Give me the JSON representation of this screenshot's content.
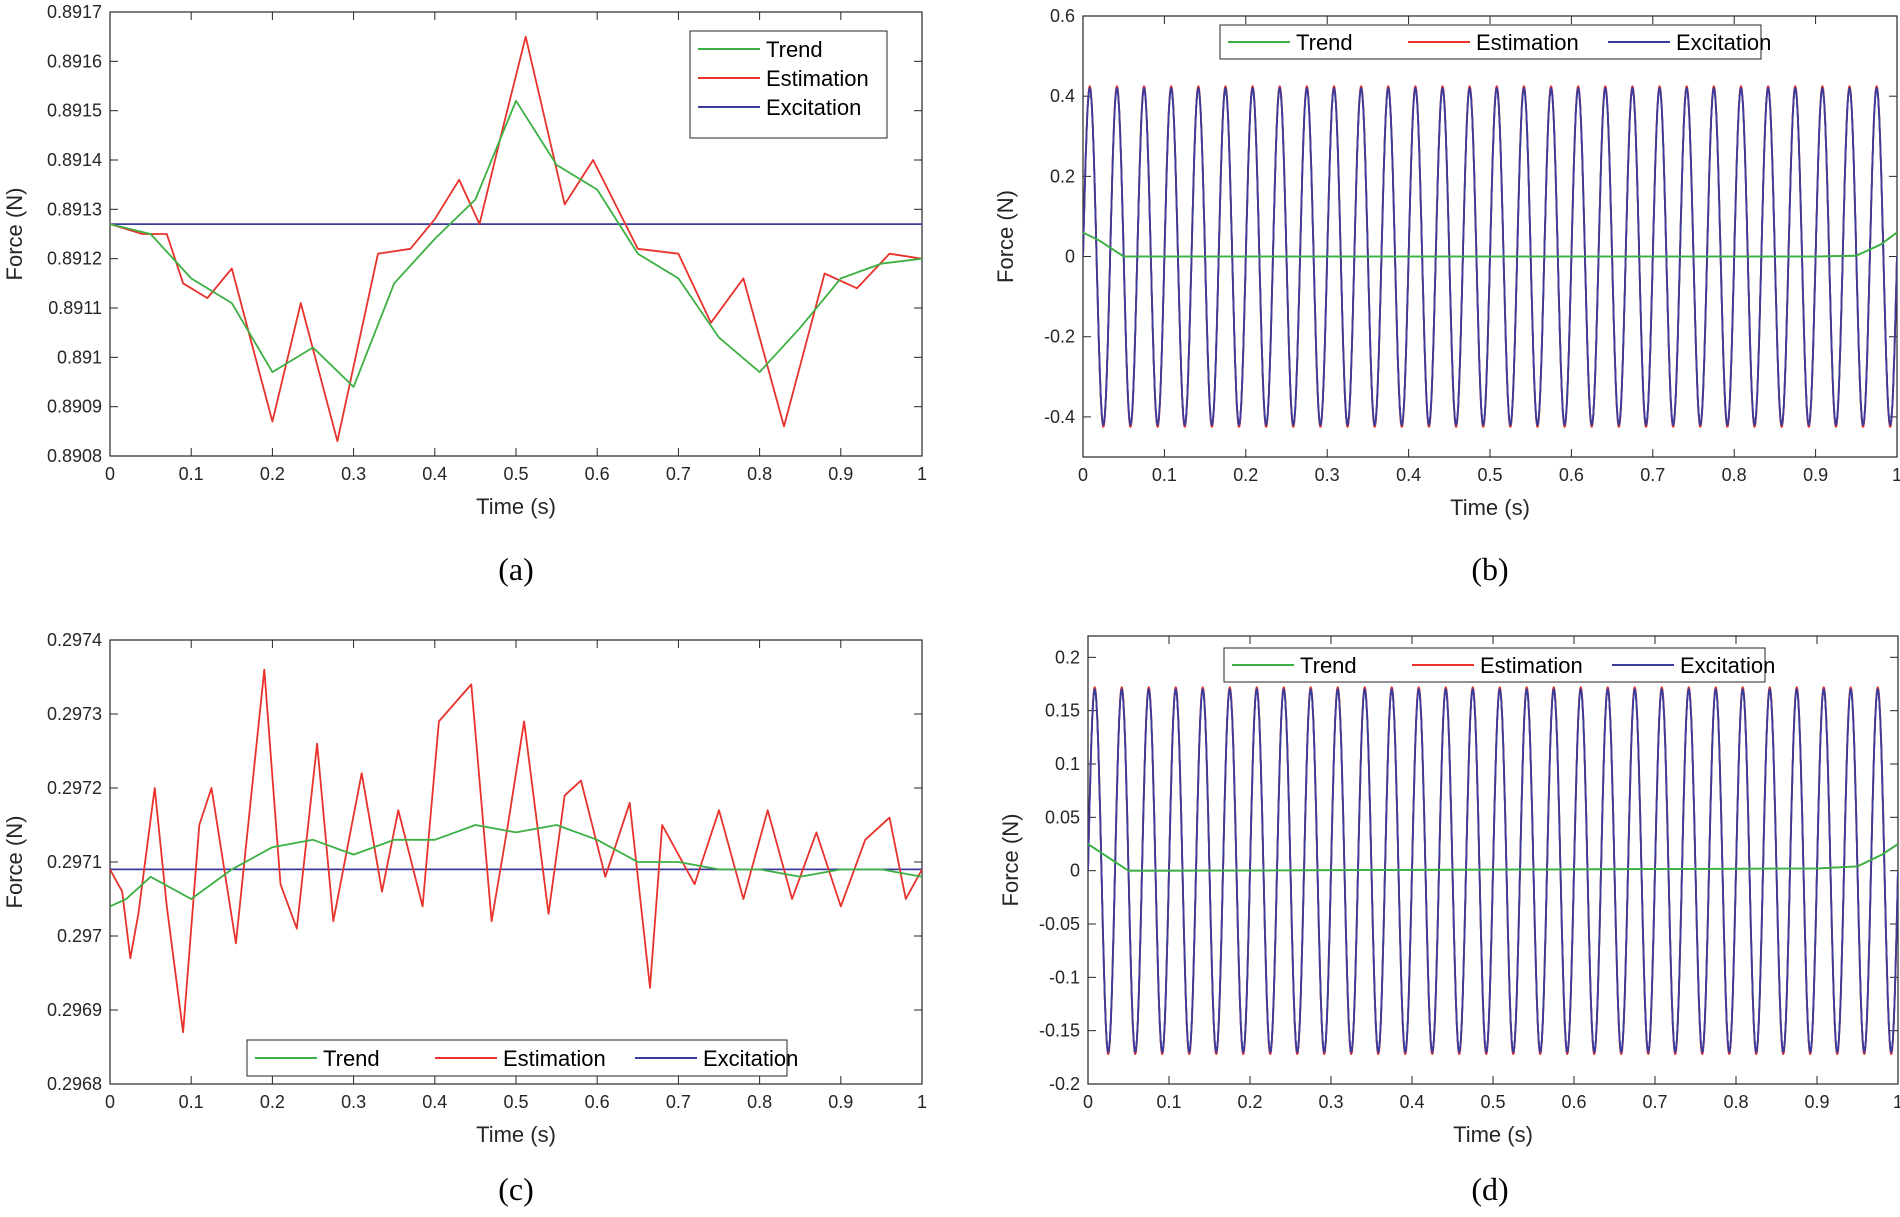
{
  "colors": {
    "trend": "#3cb043",
    "estimation": "#e8322b",
    "excitation": "#3a3c9c",
    "axis": "#262626"
  },
  "chart_data": [
    {
      "id": "a",
      "type": "line",
      "caption": "(a)",
      "xlabel": "Time (s)",
      "ylabel": "Force (N)",
      "xlim": [
        0,
        1
      ],
      "ylim": [
        0.8908,
        0.8917
      ],
      "xticks": [
        0,
        0.1,
        0.2,
        0.3,
        0.4,
        0.5,
        0.6,
        0.7,
        0.8,
        0.9,
        1
      ],
      "xtick_labels": [
        "0",
        "0.1",
        "0.2",
        "0.3",
        "0.4",
        "0.5",
        "0.6",
        "0.7",
        "0.8",
        "0.9",
        "1"
      ],
      "yticks": [
        0.8908,
        0.8909,
        0.891,
        0.8911,
        0.8912,
        0.8913,
        0.8914,
        0.8915,
        0.8916,
        0.8917
      ],
      "ytick_labels": [
        "0.8908",
        "0.8909",
        "0.891",
        "0.8911",
        "0.8912",
        "0.8913",
        "0.8914",
        "0.8915",
        "0.8916",
        "0.8917"
      ],
      "legend": {
        "position": "top-right",
        "orientation": "vertical"
      },
      "series": [
        {
          "name": "Trend",
          "color": "#3cb043",
          "x": [
            0,
            0.05,
            0.1,
            0.15,
            0.2,
            0.25,
            0.3,
            0.35,
            0.4,
            0.45,
            0.5,
            0.55,
            0.6,
            0.65,
            0.7,
            0.75,
            0.8,
            0.85,
            0.9,
            0.95,
            1
          ],
          "y": [
            0.89127,
            0.89125,
            0.89116,
            0.89111,
            0.89097,
            0.89102,
            0.89094,
            0.89115,
            0.89124,
            0.89132,
            0.89152,
            0.89139,
            0.89134,
            0.89121,
            0.89116,
            0.89104,
            0.89097,
            0.89106,
            0.89116,
            0.89119,
            0.8912
          ]
        },
        {
          "name": "Estimation",
          "color": "#e8322b",
          "x": [
            0,
            0.04,
            0.07,
            0.09,
            0.12,
            0.15,
            0.2,
            0.235,
            0.28,
            0.33,
            0.37,
            0.4,
            0.43,
            0.455,
            0.48,
            0.512,
            0.56,
            0.595,
            0.65,
            0.7,
            0.74,
            0.78,
            0.83,
            0.88,
            0.92,
            0.96,
            1
          ],
          "y": [
            0.89127,
            0.89125,
            0.89125,
            0.89115,
            0.89112,
            0.89118,
            0.89087,
            0.89111,
            0.89083,
            0.89121,
            0.89122,
            0.89128,
            0.89136,
            0.89127,
            0.89144,
            0.89165,
            0.89131,
            0.8914,
            0.89122,
            0.89121,
            0.89107,
            0.89116,
            0.89086,
            0.89117,
            0.89114,
            0.89121,
            0.8912
          ]
        },
        {
          "name": "Excitation",
          "color": "#3a3c9c",
          "x": [
            0,
            1
          ],
          "y": [
            0.89127,
            0.89127
          ]
        }
      ]
    },
    {
      "id": "b",
      "type": "line",
      "caption": "(b)",
      "xlabel": "Time (s)",
      "ylabel": "Force (N)",
      "xlim": [
        0,
        1
      ],
      "ylim": [
        -0.5,
        0.6
      ],
      "xticks": [
        0,
        0.1,
        0.2,
        0.3,
        0.4,
        0.5,
        0.6,
        0.7,
        0.8,
        0.9,
        1
      ],
      "xtick_labels": [
        "0",
        "0.1",
        "0.2",
        "0.3",
        "0.4",
        "0.5",
        "0.6",
        "0.7",
        "0.8",
        "0.9",
        "1"
      ],
      "yticks": [
        -0.4,
        -0.2,
        0,
        0.2,
        0.4,
        0.6
      ],
      "ytick_labels": [
        "-0.4",
        "-0.2",
        "0",
        "0.2",
        "0.4",
        "0.6"
      ],
      "legend": {
        "position": "top-center",
        "orientation": "horizontal"
      },
      "series": [
        {
          "name": "Trend",
          "color": "#3cb043",
          "x": [
            0,
            0.02,
            0.05,
            0.1,
            0.5,
            0.9,
            0.95,
            0.98,
            1
          ],
          "y": [
            0.06,
            0.04,
            0.0,
            0.0,
            0.0,
            0.0,
            0.002,
            0.03,
            0.06
          ]
        },
        {
          "name": "Estimation",
          "color": "#e8322b",
          "waveform": "sine",
          "amplitude": 0.425,
          "frequency_hz": 30
        },
        {
          "name": "Excitation",
          "color": "#3a3c9c",
          "waveform": "sine",
          "amplitude": 0.42,
          "frequency_hz": 30
        }
      ]
    },
    {
      "id": "c",
      "type": "line",
      "caption": "(c)",
      "xlabel": "Time (s)",
      "ylabel": "Force (N)",
      "xlim": [
        0,
        1
      ],
      "ylim": [
        0.2968,
        0.2974
      ],
      "xticks": [
        0,
        0.1,
        0.2,
        0.3,
        0.4,
        0.5,
        0.6,
        0.7,
        0.8,
        0.9,
        1
      ],
      "xtick_labels": [
        "0",
        "0.1",
        "0.2",
        "0.3",
        "0.4",
        "0.5",
        "0.6",
        "0.7",
        "0.8",
        "0.9",
        "1"
      ],
      "yticks": [
        0.2968,
        0.2969,
        0.297,
        0.2971,
        0.2972,
        0.2973,
        0.2974
      ],
      "ytick_labels": [
        "0.2968",
        "0.2969",
        "0.297",
        "0.2971",
        "0.2972",
        "0.2973",
        "0.2974"
      ],
      "legend": {
        "position": "bottom-center",
        "orientation": "horizontal"
      },
      "series": [
        {
          "name": "Trend",
          "color": "#3cb043",
          "x": [
            0,
            0.02,
            0.05,
            0.1,
            0.15,
            0.2,
            0.25,
            0.3,
            0.35,
            0.4,
            0.45,
            0.5,
            0.55,
            0.6,
            0.65,
            0.7,
            0.75,
            0.8,
            0.85,
            0.9,
            0.95,
            1
          ],
          "y": [
            0.29704,
            0.29705,
            0.29708,
            0.29705,
            0.29709,
            0.29712,
            0.29713,
            0.29711,
            0.29713,
            0.29713,
            0.29715,
            0.29714,
            0.29715,
            0.29713,
            0.2971,
            0.2971,
            0.29709,
            0.29709,
            0.29708,
            0.29709,
            0.29709,
            0.29708
          ]
        },
        {
          "name": "Estimation",
          "color": "#e8322b",
          "x": [
            0,
            0.015,
            0.025,
            0.035,
            0.055,
            0.07,
            0.09,
            0.11,
            0.125,
            0.155,
            0.19,
            0.21,
            0.23,
            0.255,
            0.275,
            0.31,
            0.335,
            0.355,
            0.385,
            0.405,
            0.445,
            0.47,
            0.49,
            0.51,
            0.54,
            0.56,
            0.58,
            0.61,
            0.64,
            0.665,
            0.68,
            0.72,
            0.75,
            0.78,
            0.81,
            0.84,
            0.87,
            0.9,
            0.93,
            0.96,
            0.98,
            1
          ],
          "y": [
            0.29709,
            0.29706,
            0.29697,
            0.29703,
            0.2972,
            0.29704,
            0.29687,
            0.29715,
            0.2972,
            0.29699,
            0.29736,
            0.29707,
            0.29701,
            0.29726,
            0.29702,
            0.29722,
            0.29706,
            0.29717,
            0.29704,
            0.29729,
            0.29734,
            0.29702,
            0.29715,
            0.29729,
            0.29703,
            0.29719,
            0.29721,
            0.29708,
            0.29718,
            0.29693,
            0.29715,
            0.29707,
            0.29717,
            0.29705,
            0.29717,
            0.29705,
            0.29714,
            0.29704,
            0.29713,
            0.29716,
            0.29705,
            0.29709
          ]
        },
        {
          "name": "Excitation",
          "color": "#3a3c9c",
          "x": [
            0,
            1
          ],
          "y": [
            0.29709,
            0.29709
          ]
        }
      ]
    },
    {
      "id": "d",
      "type": "line",
      "caption": "(d)",
      "xlabel": "Time (s)",
      "ylabel": "Force (N)",
      "xlim": [
        0,
        1
      ],
      "ylim": [
        -0.2,
        0.22
      ],
      "xticks": [
        0,
        0.1,
        0.2,
        0.3,
        0.4,
        0.5,
        0.6,
        0.7,
        0.8,
        0.9,
        1
      ],
      "xtick_labels": [
        "0",
        "0.1",
        "0.2",
        "0.3",
        "0.4",
        "0.5",
        "0.6",
        "0.7",
        "0.8",
        "0.9",
        "1"
      ],
      "yticks": [
        -0.2,
        -0.15,
        -0.1,
        -0.05,
        0,
        0.05,
        0.1,
        0.15,
        0.2
      ],
      "ytick_labels": [
        "-0.2",
        "-0.15",
        "-0.1",
        "-0.05",
        "0",
        "0.05",
        "0.1",
        "0.15",
        "0.2"
      ],
      "legend": {
        "position": "top-center",
        "orientation": "horizontal"
      },
      "series": [
        {
          "name": "Trend",
          "color": "#3cb043",
          "x": [
            0,
            0.02,
            0.05,
            0.1,
            0.5,
            0.9,
            0.95,
            0.98,
            1
          ],
          "y": [
            0.025,
            0.015,
            0.0,
            0.0,
            0.001,
            0.002,
            0.004,
            0.015,
            0.025
          ]
        },
        {
          "name": "Estimation",
          "color": "#e8322b",
          "waveform": "sine",
          "amplitude": 0.172,
          "frequency_hz": 30
        },
        {
          "name": "Excitation",
          "color": "#3a3c9c",
          "waveform": "sine",
          "amplitude": 0.17,
          "frequency_hz": 30
        }
      ]
    }
  ]
}
